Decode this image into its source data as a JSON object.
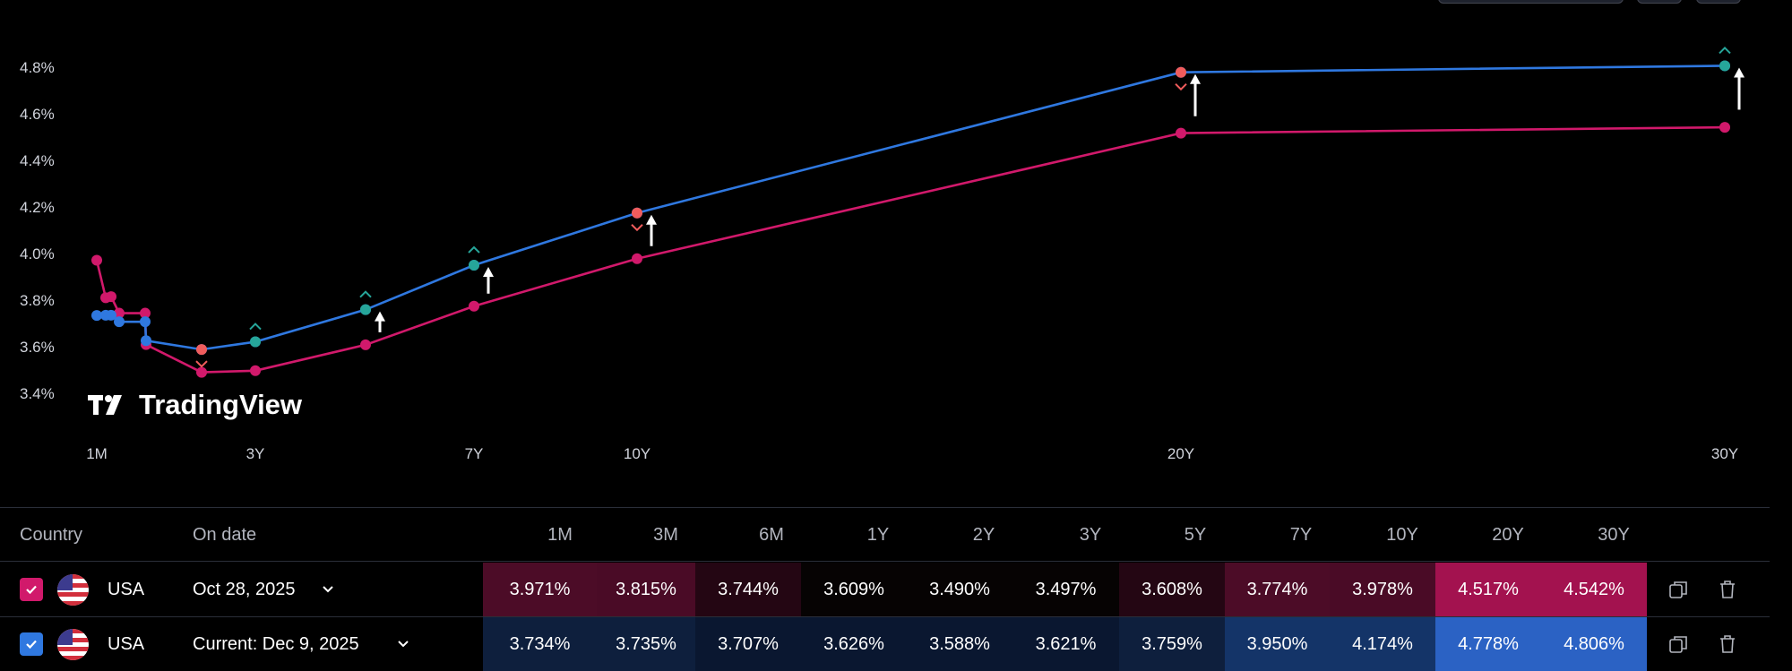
{
  "chart_data": {
    "type": "line",
    "title": "",
    "y_tick_labels": [
      "4.8%",
      "4.6%",
      "4.4%",
      "4.2%",
      "4.0%",
      "3.8%",
      "3.6%",
      "3.4%"
    ],
    "y_ticks": [
      4.8,
      4.6,
      4.4,
      4.2,
      4.0,
      3.8,
      3.6,
      3.4
    ],
    "ylim": [
      3.3,
      4.87
    ],
    "x_tick_labels": [
      "1M",
      "3Y",
      "7Y",
      "10Y",
      "20Y",
      "30Y"
    ],
    "x_tick_years": [
      0.0833,
      3,
      7,
      10,
      20,
      30
    ],
    "maturities_years": [
      0.0833,
      0.1667,
      0.25,
      0.3333,
      0.5,
      1,
      2,
      3,
      5,
      7,
      10,
      20,
      30
    ],
    "series": [
      {
        "name": "USA Oct 28, 2025",
        "color": "#d1196b",
        "values": [
          3.971,
          3.81,
          3.815,
          3.744,
          3.744,
          3.609,
          3.49,
          3.497,
          3.608,
          3.774,
          3.978,
          4.517,
          4.542
        ]
      },
      {
        "name": "USA Current: Dec 9, 2025",
        "color": "#2f78e0",
        "values": [
          3.734,
          3.735,
          3.735,
          3.707,
          3.707,
          3.626,
          3.588,
          3.621,
          3.759,
          3.95,
          4.174,
          4.778,
          4.806
        ]
      }
    ],
    "change_markers": [
      {
        "maturity_years": 2,
        "direction": "down",
        "color": "#f05c5c"
      },
      {
        "maturity_years": 3,
        "direction": "up",
        "color": "#26a69a"
      },
      {
        "maturity_years": 5,
        "direction": "up",
        "color": "#26a69a"
      },
      {
        "maturity_years": 7,
        "direction": "up",
        "color": "#26a69a"
      },
      {
        "maturity_years": 10,
        "direction": "down",
        "color": "#f05c5c"
      },
      {
        "maturity_years": 20,
        "direction": "down",
        "color": "#f05c5c"
      },
      {
        "maturity_years": 30,
        "direction": "up",
        "color": "#26a69a"
      }
    ],
    "arrows_at_years": [
      5,
      7,
      10,
      20,
      30
    ],
    "grid": false,
    "legend": "none"
  },
  "watermark": {
    "text": "TradingView"
  },
  "table": {
    "headers": {
      "country": "Country",
      "on_date": "On date"
    },
    "tenors": [
      "1M",
      "3M",
      "6M",
      "1Y",
      "2Y",
      "3Y",
      "5Y",
      "7Y",
      "10Y",
      "20Y",
      "30Y"
    ],
    "rows": [
      {
        "country": "USA",
        "date": "Oct 28, 2025",
        "checkbox_color": "#d1196b",
        "values": [
          "3.971%",
          "3.815%",
          "3.744%",
          "3.609%",
          "3.490%",
          "3.497%",
          "3.608%",
          "3.774%",
          "3.978%",
          "4.517%",
          "4.542%"
        ],
        "cell_colors": [
          "#4c0c27",
          "#4a0b26",
          "#240613",
          "#060303",
          "#060303",
          "#060303",
          "#240613",
          "#4c0c27",
          "#4a0b26",
          "#a3124f",
          "#a3124f"
        ]
      },
      {
        "country": "USA",
        "date": "Current: Dec 9, 2025",
        "checkbox_color": "#2f78e0",
        "values": [
          "3.734%",
          "3.735%",
          "3.707%",
          "3.626%",
          "3.588%",
          "3.621%",
          "3.759%",
          "3.950%",
          "4.174%",
          "4.778%",
          "4.806%"
        ],
        "cell_colors": [
          "#0e1f3d",
          "#0e1f3d",
          "#0a1730",
          "#0a1730",
          "#0a1730",
          "#0a1730",
          "#0e1f3d",
          "#143468",
          "#143468",
          "#2b62c4",
          "#2b62c4"
        ]
      }
    ]
  }
}
